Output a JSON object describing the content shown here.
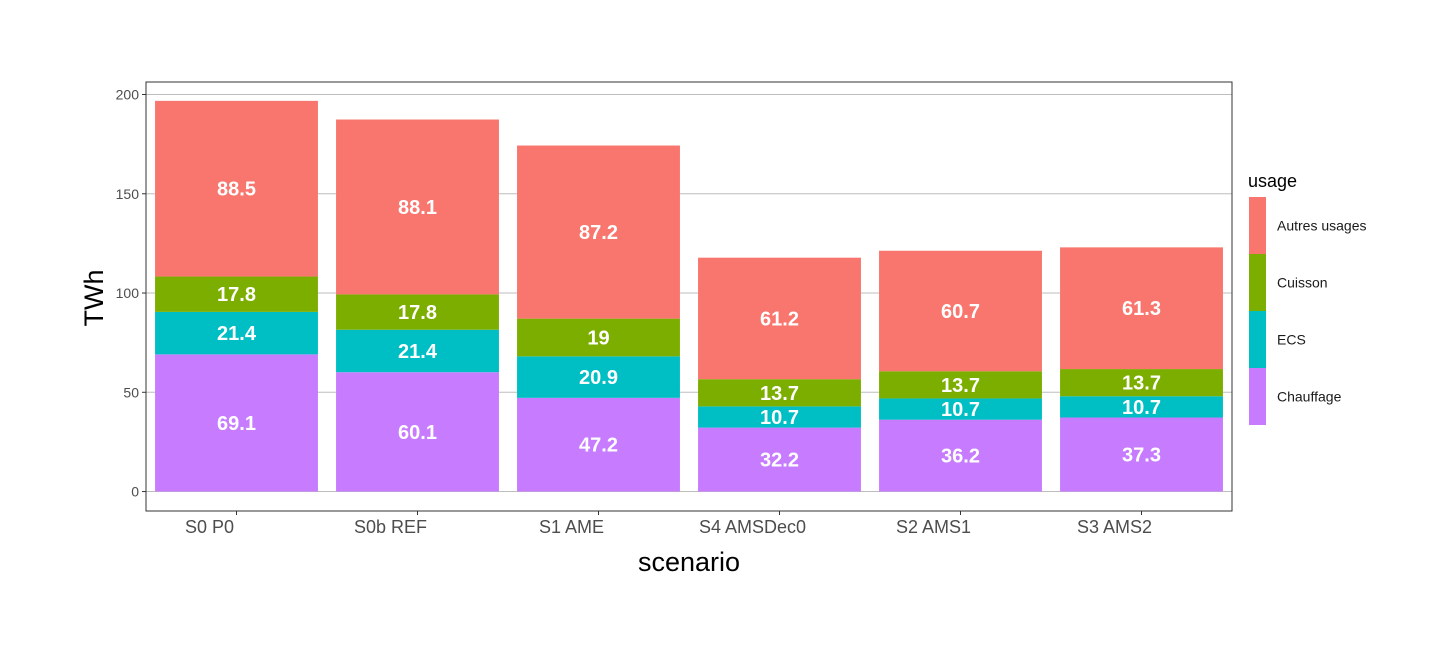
{
  "chart_data": {
    "type": "bar",
    "stacked": true,
    "categories": [
      "S0 P0",
      "S0b REF",
      "S1 AME",
      "S4 AMSDec0",
      "S2 AMS1",
      "S3 AMS2"
    ],
    "series": [
      {
        "name": "Chauffage",
        "color": "#C77CFF",
        "values": [
          69.1,
          60.1,
          47.2,
          32.2,
          36.2,
          37.3
        ]
      },
      {
        "name": "ECS",
        "color": "#00BFC4",
        "values": [
          21.4,
          21.4,
          20.9,
          10.7,
          10.7,
          10.7
        ]
      },
      {
        "name": "Cuisson",
        "color": "#7CAE00",
        "values": [
          17.8,
          17.8,
          19,
          13.7,
          13.7,
          13.7
        ]
      },
      {
        "name": "Autres usages",
        "color": "#F8766D",
        "values": [
          88.5,
          88.1,
          87.2,
          61.2,
          60.7,
          61.3
        ]
      }
    ],
    "xlabel": "scenario",
    "ylabel": "TWh",
    "ylim": [
      -9.8,
      206.3
    ],
    "yticks": [
      0,
      50,
      100,
      150,
      200
    ],
    "grid": "horizontal",
    "legend": {
      "title": "usage",
      "placement": "right",
      "order": [
        "Autres usages",
        "Cuisson",
        "ECS",
        "Chauffage"
      ]
    }
  }
}
